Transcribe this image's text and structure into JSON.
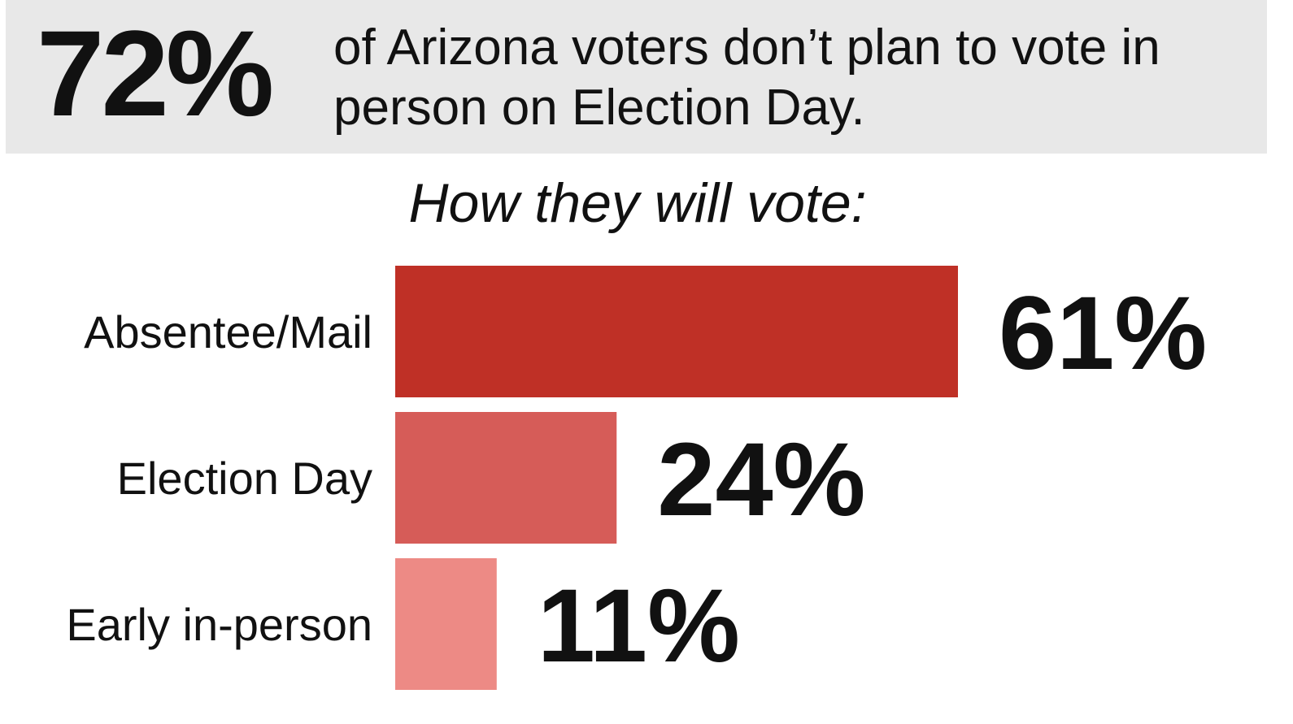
{
  "header": {
    "stat": "72%",
    "text": "of Arizona voters don’t plan to vote in person on Election Day."
  },
  "subtitle": "How they will vote:",
  "colors": {
    "header_background": "#e8e8e8",
    "text": "#111111"
  },
  "chart_data": {
    "type": "bar",
    "orientation": "horizontal",
    "title": "How they will vote:",
    "categories": [
      "Absentee/Mail",
      "Election Day",
      "Early in-person"
    ],
    "values": [
      61,
      24,
      11
    ],
    "value_labels": [
      "61%",
      "24%",
      "11%"
    ],
    "bar_colors": [
      "#bf3026",
      "#d65c58",
      "#ed8a85"
    ],
    "xlim": [
      0,
      61
    ],
    "grid": false,
    "legend": "none"
  }
}
